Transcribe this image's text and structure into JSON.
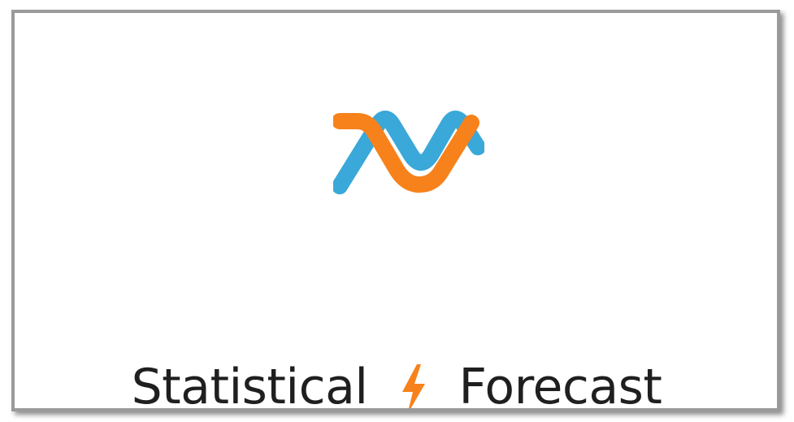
{
  "header": {
    "title_left": "Statistical",
    "title_right": "Forecast"
  },
  "icons": {
    "logo": "logo-icon",
    "separator": "lightning-bolt-icon"
  },
  "colors": {
    "logo_blue": "#3aa8d8",
    "logo_orange": "#f7821b",
    "bolt_orange": "#f7821b",
    "text": "#1f1f1f"
  }
}
